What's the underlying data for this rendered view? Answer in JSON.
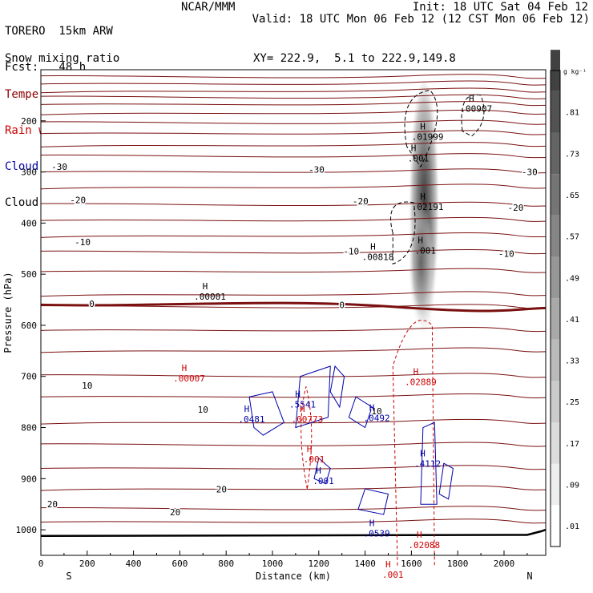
{
  "header": {
    "model": "TORERO  15km ARW",
    "center": "NCAR/MMM",
    "init": "Init: 18 UTC Sat 04 Feb 12",
    "fcst": "Fcst:   48 h",
    "valid": "Valid: 18 UTC Mon 06 Feb 12 (12 CST Mon 06 Feb 12)"
  },
  "fields": [
    {
      "name": "Snow mixing ratio",
      "color": "#000000"
    },
    {
      "name": "Temperature",
      "color": "#8b0000"
    },
    {
      "name": "Rain water mixing ratio",
      "color": "#cc0000"
    },
    {
      "name": "Cloud water mixing ratio",
      "color": "#0000aa"
    },
    {
      "name": "Cloud ice mixing ratio",
      "color": "#000000"
    }
  ],
  "cross_section": "XY= 222.9,  5.1 to 222.9,149.8",
  "chart_data": {
    "type": "heatmap",
    "title": "",
    "xlabel": "Distance (km)",
    "ylabel": "Pressure (hPa)",
    "xlim": [
      0,
      2180
    ],
    "ylim": [
      1050,
      100
    ],
    "x_ticks": [
      0,
      200,
      400,
      600,
      800,
      1000,
      1200,
      1400,
      1600,
      1800,
      2000
    ],
    "y_ticks": [
      200,
      300,
      400,
      500,
      600,
      700,
      800,
      900,
      1000
    ],
    "endpoints": {
      "left": "S",
      "right": "N"
    },
    "colorbar": {
      "unit": "g kg⁻¹",
      "levels": [
        0.01,
        0.09,
        0.17,
        0.25,
        0.33,
        0.41,
        0.49,
        0.57,
        0.65,
        0.73,
        0.81
      ],
      "labels": [
        ".01",
        ".09",
        ".17",
        ".25",
        ".33",
        ".41",
        ".49",
        ".57",
        ".65",
        ".73",
        ".81"
      ]
    },
    "temperature_contours": [
      {
        "value": -30,
        "label": "-30",
        "label_positions": [
          [
            80,
            290
          ],
          [
            1190,
            295
          ],
          [
            2110,
            300
          ]
        ]
      },
      {
        "value": -20,
        "label": "-20",
        "label_positions": [
          [
            160,
            355
          ],
          [
            1380,
            357
          ],
          [
            2050,
            370
          ]
        ]
      },
      {
        "value": -10,
        "label": "-10",
        "label_positions": [
          [
            180,
            437
          ],
          [
            1340,
            455
          ],
          [
            2010,
            460
          ]
        ]
      },
      {
        "value": 0,
        "label": "0",
        "label_positions": [
          [
            220,
            558
          ],
          [
            1300,
            560
          ]
        ]
      },
      {
        "value": 10,
        "label": "10",
        "label_positions": [
          [
            200,
            718
          ],
          [
            700,
            765
          ],
          [
            1450,
            768
          ]
        ]
      },
      {
        "value": 20,
        "label": "20",
        "label_positions": [
          [
            50,
            950
          ],
          [
            580,
            965
          ],
          [
            780,
            921
          ]
        ]
      }
    ],
    "maxima_labels": [
      {
        "text": ".00907",
        "x": 1880,
        "y": 170,
        "color": "#000000"
      },
      {
        "text": ".01999",
        "x": 1670,
        "y": 225,
        "color": "#000000"
      },
      {
        "text": ".001",
        "x": 1630,
        "y": 267,
        "color": "#000000"
      },
      {
        "text": ".02191",
        "x": 1670,
        "y": 362,
        "color": "#000000"
      },
      {
        "text": ".00818",
        "x": 1455,
        "y": 460,
        "color": "#000000"
      },
      {
        "text": ".001",
        "x": 1660,
        "y": 447,
        "color": "#000000"
      },
      {
        "text": ".00001",
        "x": 730,
        "y": 537,
        "color": "#000000"
      },
      {
        "text": ".00007",
        "x": 640,
        "y": 697,
        "color": "#cc0000"
      },
      {
        "text": ".02889",
        "x": 1640,
        "y": 704,
        "color": "#cc0000"
      },
      {
        "text": ".5541",
        "x": 1130,
        "y": 748,
        "color": "#0000aa"
      },
      {
        "text": ".0492",
        "x": 1450,
        "y": 775,
        "color": "#0000aa"
      },
      {
        "text": ".00773",
        "x": 1150,
        "y": 777,
        "color": "#cc0000"
      },
      {
        "text": ".0481",
        "x": 910,
        "y": 777,
        "color": "#0000aa"
      },
      {
        "text": ".001",
        "x": 1180,
        "y": 856,
        "color": "#cc0000"
      },
      {
        "text": ".001",
        "x": 1220,
        "y": 898,
        "color": "#0000aa"
      },
      {
        "text": ".4112",
        "x": 1670,
        "y": 864,
        "color": "#0000aa"
      },
      {
        "text": ".0539",
        "x": 1450,
        "y": 1001,
        "color": "#0000aa"
      },
      {
        "text": ".02088",
        "x": 1655,
        "y": 1023,
        "color": "#cc0000"
      },
      {
        "text": ".001",
        "x": 1520,
        "y": 1081,
        "color": "#cc0000"
      }
    ],
    "grid": false
  }
}
